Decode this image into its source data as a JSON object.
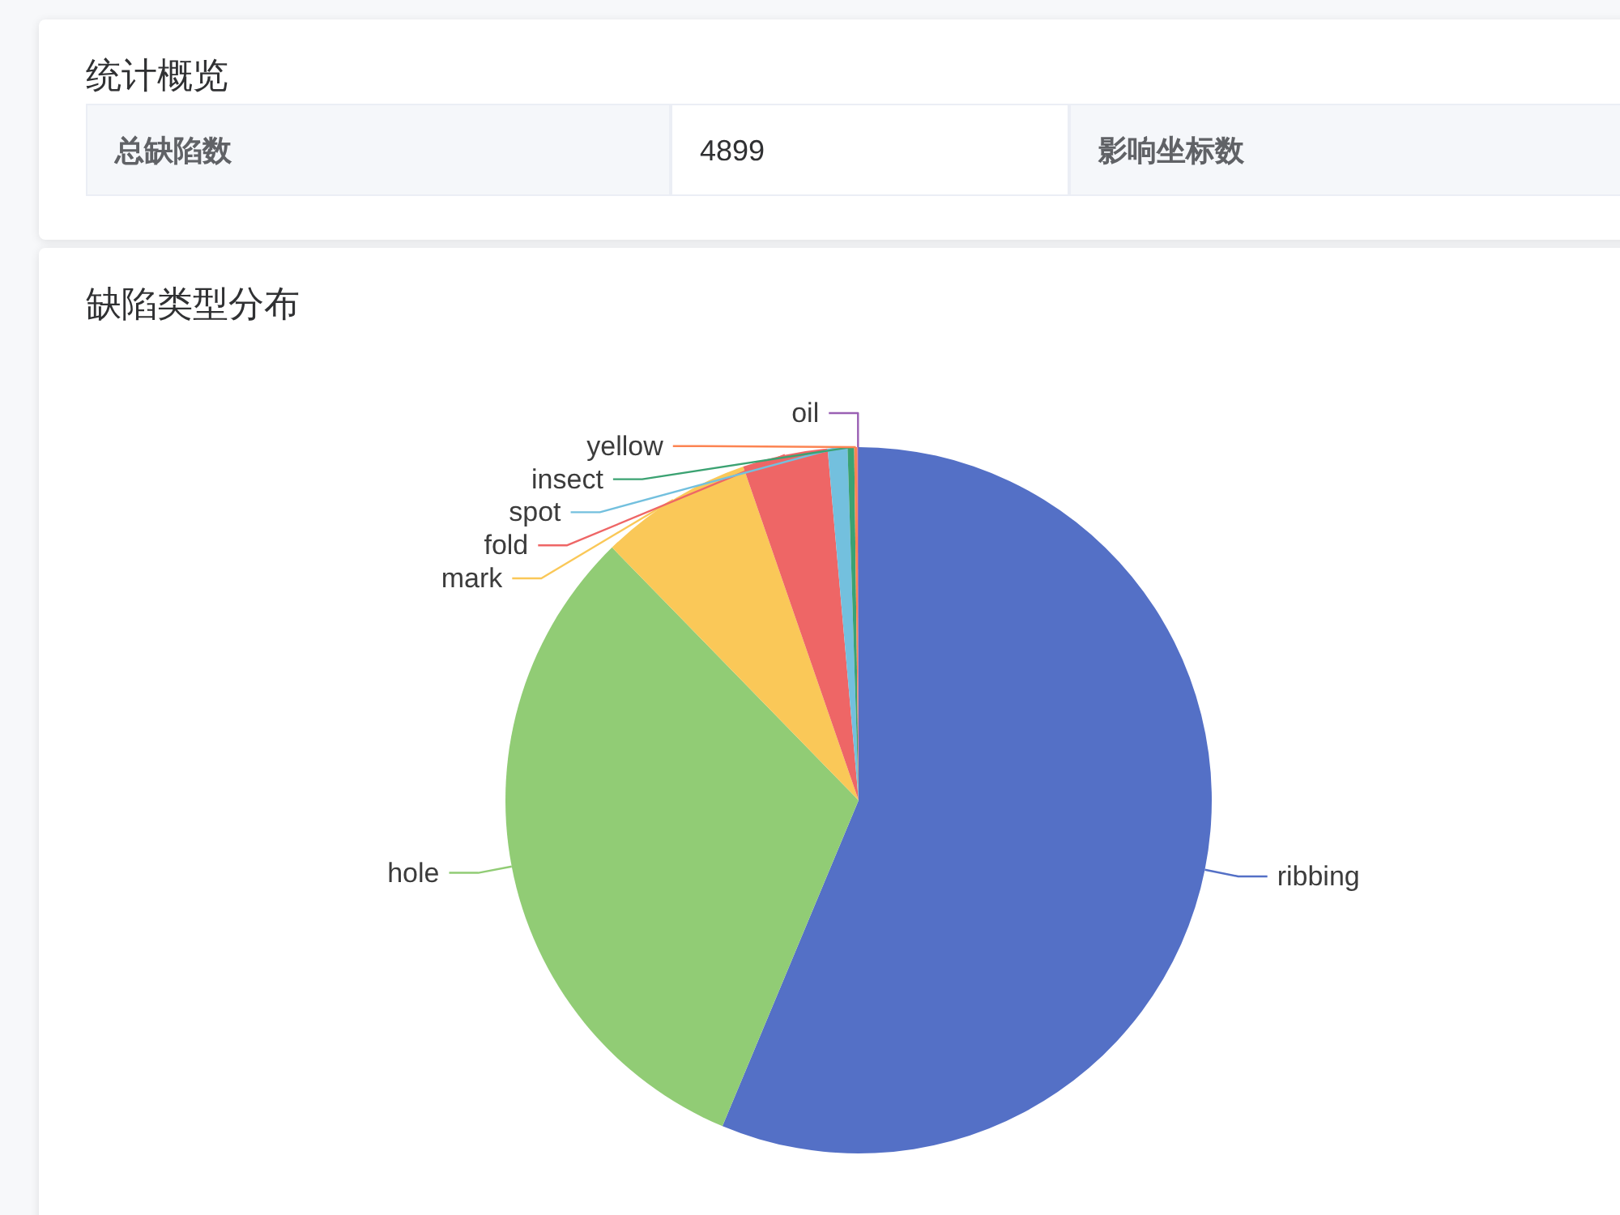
{
  "chart_data": [
    {
      "type": "other",
      "title": "统计概览",
      "annotations": [
        "总缺陷数",
        "4899",
        "影响坐标数"
      ]
    },
    {
      "type": "pie",
      "title": "缺陷类型分布",
      "categories": [
        "ribbing",
        "hole",
        "mark",
        "fold",
        "spot",
        "insect",
        "yellow",
        "oil"
      ],
      "values": [
        56.3,
        31.4,
        7.0,
        3.9,
        0.9,
        0.3,
        0.15,
        0.05
      ],
      "colors": [
        "#5470c6",
        "#91cc75",
        "#fac858",
        "#ee6666",
        "#73c0de",
        "#3ba272",
        "#fc8452",
        "#9a60b4"
      ]
    }
  ]
}
